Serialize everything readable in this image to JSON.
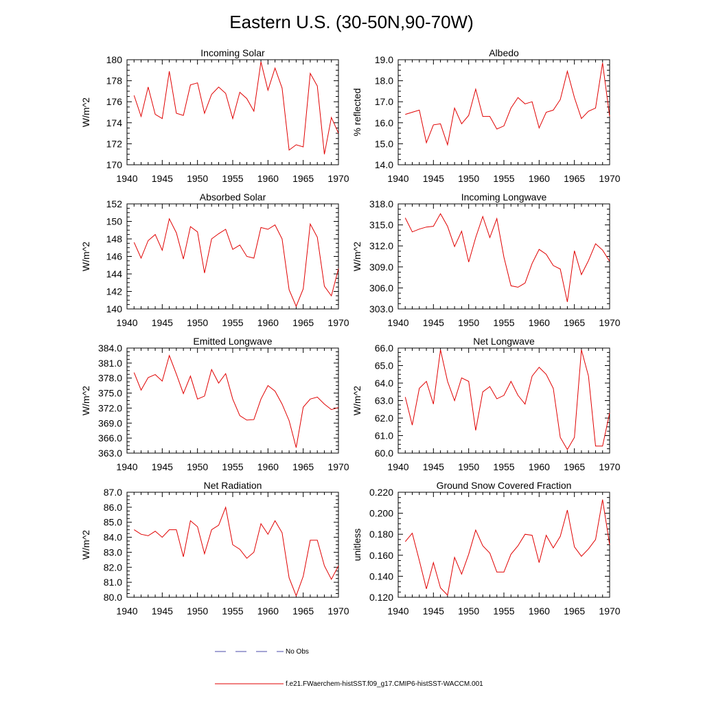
{
  "figure": {
    "title": "Eastern U.S. (30-50N,90-70W)",
    "legend": [
      {
        "label": "No Obs",
        "color": "#4a4aa8",
        "dash": "dashed"
      },
      {
        "label": "f.e21.FWaerchem-histSST.f09_g17.CMIP6-histSST-WACCM.001",
        "color": "#e00000",
        "dash": "solid"
      }
    ]
  },
  "chart_data": [
    {
      "type": "line",
      "title": "Incoming Solar",
      "ylabel": "W/m^2",
      "xlim": [
        1940,
        1970
      ],
      "ylim": [
        170,
        180
      ],
      "xticks": [
        "1940",
        "1945",
        "1950",
        "1955",
        "1960",
        "1965",
        "1970"
      ],
      "yticks": [
        "170",
        "172",
        "174",
        "176",
        "178",
        "180"
      ],
      "ytick_values": [
        170,
        172,
        174,
        176,
        178,
        180
      ],
      "series": [
        {
          "color": "#e00000",
          "x": [
            1941,
            1942,
            1943,
            1944,
            1945,
            1946,
            1947,
            1948,
            1949,
            1950,
            1951,
            1952,
            1953,
            1954,
            1955,
            1956,
            1957,
            1958,
            1959,
            1960,
            1961,
            1962,
            1963,
            1964,
            1965,
            1966,
            1967,
            1968,
            1969,
            1970
          ],
          "values": [
            176.6,
            174.6,
            177.4,
            174.8,
            174.4,
            178.9,
            174.9,
            174.7,
            177.6,
            177.8,
            174.9,
            176.7,
            177.4,
            176.8,
            174.4,
            176.9,
            176.3,
            175.1,
            179.8,
            177.1,
            179.2,
            177.3,
            171.4,
            171.9,
            171.7,
            178.7,
            177.5,
            171.0,
            174.5,
            173.0
          ]
        }
      ]
    },
    {
      "type": "line",
      "title": "Albedo",
      "ylabel": "% reflected",
      "xlim": [
        1940,
        1970
      ],
      "ylim": [
        14.0,
        19.0
      ],
      "xticks": [
        "1940",
        "1945",
        "1950",
        "1955",
        "1960",
        "1965",
        "1970"
      ],
      "yticks": [
        "14.0",
        "15.0",
        "16.0",
        "17.0",
        "18.0",
        "19.0"
      ],
      "ytick_values": [
        14,
        15,
        16,
        17,
        18,
        19
      ],
      "series": [
        {
          "color": "#e00000",
          "x": [
            1941,
            1942,
            1943,
            1944,
            1945,
            1946,
            1947,
            1948,
            1949,
            1950,
            1951,
            1952,
            1953,
            1954,
            1955,
            1956,
            1957,
            1958,
            1959,
            1960,
            1961,
            1962,
            1963,
            1964,
            1965,
            1966,
            1967,
            1968,
            1969,
            1970
          ],
          "values": [
            16.4,
            16.5,
            16.6,
            15.05,
            15.9,
            15.95,
            14.95,
            16.7,
            15.95,
            16.35,
            17.6,
            16.3,
            16.3,
            15.7,
            15.85,
            16.7,
            17.2,
            16.9,
            17.0,
            15.75,
            16.5,
            16.6,
            17.1,
            18.45,
            17.2,
            16.2,
            16.55,
            16.7,
            18.85,
            16.3
          ]
        }
      ]
    },
    {
      "type": "line",
      "title": "Absorbed Solar",
      "ylabel": "W/m^2",
      "xlim": [
        1940,
        1970
      ],
      "ylim": [
        140,
        152
      ],
      "xticks": [
        "1940",
        "1945",
        "1950",
        "1955",
        "1960",
        "1965",
        "1970"
      ],
      "yticks": [
        "140",
        "142",
        "144",
        "146",
        "148",
        "150",
        "152"
      ],
      "ytick_values": [
        140,
        142,
        144,
        146,
        148,
        150,
        152
      ],
      "series": [
        {
          "color": "#e00000",
          "x": [
            1941,
            1942,
            1943,
            1944,
            1945,
            1946,
            1947,
            1948,
            1949,
            1950,
            1951,
            1952,
            1953,
            1954,
            1955,
            1956,
            1957,
            1958,
            1959,
            1960,
            1961,
            1962,
            1963,
            1964,
            1965,
            1966,
            1967,
            1968,
            1969,
            1970
          ],
          "values": [
            147.6,
            145.8,
            147.8,
            148.5,
            146.7,
            150.3,
            148.7,
            145.7,
            149.4,
            148.8,
            144.1,
            148.0,
            148.6,
            149.1,
            146.8,
            147.3,
            146.0,
            145.8,
            149.3,
            149.1,
            149.6,
            148.0,
            142.2,
            140.3,
            142.3,
            149.7,
            148.2,
            142.6,
            141.5,
            144.6
          ]
        }
      ]
    },
    {
      "type": "line",
      "title": "Incoming Longwave",
      "ylabel": "W/m^2",
      "xlim": [
        1940,
        1970
      ],
      "ylim": [
        303.0,
        318.0
      ],
      "xticks": [
        "1940",
        "1945",
        "1950",
        "1955",
        "1960",
        "1965",
        "1970"
      ],
      "yticks": [
        "303.0",
        "306.0",
        "309.0",
        "312.0",
        "315.0",
        "318.0"
      ],
      "ytick_values": [
        303,
        306,
        309,
        312,
        315,
        318
      ],
      "series": [
        {
          "color": "#e00000",
          "x": [
            1941,
            1942,
            1943,
            1944,
            1945,
            1946,
            1947,
            1948,
            1949,
            1950,
            1951,
            1952,
            1953,
            1954,
            1955,
            1956,
            1957,
            1958,
            1959,
            1960,
            1961,
            1962,
            1963,
            1964,
            1965,
            1966,
            1967,
            1968,
            1969,
            1970
          ],
          "values": [
            316.0,
            314.0,
            314.4,
            314.7,
            314.8,
            316.6,
            314.8,
            311.9,
            314.1,
            309.7,
            313.2,
            316.2,
            313.2,
            315.9,
            310.4,
            306.3,
            306.1,
            306.7,
            309.5,
            311.5,
            310.8,
            309.2,
            308.7,
            304.0,
            311.3,
            307.9,
            309.9,
            312.3,
            311.4,
            309.8
          ]
        }
      ]
    },
    {
      "type": "line",
      "title": "Emitted Longwave",
      "ylabel": "W/m^2",
      "xlim": [
        1940,
        1970
      ],
      "ylim": [
        363.0,
        384.0
      ],
      "xticks": [
        "1940",
        "1945",
        "1950",
        "1955",
        "1960",
        "1965",
        "1970"
      ],
      "yticks": [
        "363.0",
        "366.0",
        "369.0",
        "372.0",
        "375.0",
        "378.0",
        "381.0",
        "384.0"
      ],
      "ytick_values": [
        363,
        366,
        369,
        372,
        375,
        378,
        381,
        384
      ],
      "series": [
        {
          "color": "#e00000",
          "x": [
            1941,
            1942,
            1943,
            1944,
            1945,
            1946,
            1947,
            1948,
            1949,
            1950,
            1951,
            1952,
            1953,
            1954,
            1955,
            1956,
            1957,
            1958,
            1959,
            1960,
            1961,
            1962,
            1963,
            1964,
            1965,
            1966,
            1967,
            1968,
            1969,
            1970
          ],
          "values": [
            379.1,
            375.6,
            378.1,
            378.7,
            377.4,
            382.5,
            378.8,
            374.9,
            378.4,
            373.8,
            374.4,
            379.7,
            377.0,
            378.9,
            373.8,
            370.5,
            369.6,
            369.7,
            373.8,
            376.5,
            375.4,
            372.8,
            369.5,
            364.1,
            372.2,
            373.8,
            374.2,
            372.8,
            371.7,
            372.1
          ]
        }
      ]
    },
    {
      "type": "line",
      "title": "Net Longwave",
      "ylabel": "W/m^2",
      "xlim": [
        1940,
        1970
      ],
      "ylim": [
        60.0,
        66.0
      ],
      "xticks": [
        "1940",
        "1945",
        "1950",
        "1955",
        "1960",
        "1965",
        "1970"
      ],
      "yticks": [
        "60.0",
        "61.0",
        "62.0",
        "63.0",
        "64.0",
        "65.0",
        "66.0"
      ],
      "ytick_values": [
        60,
        61,
        62,
        63,
        64,
        65,
        66
      ],
      "series": [
        {
          "color": "#e00000",
          "x": [
            1941,
            1942,
            1943,
            1944,
            1945,
            1946,
            1947,
            1948,
            1949,
            1950,
            1951,
            1952,
            1953,
            1954,
            1955,
            1956,
            1957,
            1958,
            1959,
            1960,
            1961,
            1962,
            1963,
            1964,
            1965,
            1966,
            1967,
            1968,
            1969,
            1970
          ],
          "values": [
            63.2,
            61.6,
            63.7,
            64.1,
            62.8,
            65.9,
            64.1,
            63.0,
            64.3,
            64.1,
            61.3,
            63.5,
            63.8,
            63.1,
            63.3,
            64.1,
            63.3,
            62.8,
            64.4,
            64.9,
            64.5,
            63.7,
            60.9,
            60.2,
            60.9,
            65.9,
            64.4,
            60.4,
            60.4,
            62.3
          ]
        }
      ]
    },
    {
      "type": "line",
      "title": "Net Radiation",
      "ylabel": "W/m^2",
      "xlim": [
        1940,
        1970
      ],
      "ylim": [
        80.0,
        87.0
      ],
      "xticks": [
        "1940",
        "1945",
        "1950",
        "1955",
        "1960",
        "1965",
        "1970"
      ],
      "yticks": [
        "80.0",
        "81.0",
        "82.0",
        "83.0",
        "84.0",
        "85.0",
        "86.0",
        "87.0"
      ],
      "ytick_values": [
        80,
        81,
        82,
        83,
        84,
        85,
        86,
        87
      ],
      "series": [
        {
          "color": "#e00000",
          "x": [
            1941,
            1942,
            1943,
            1944,
            1945,
            1946,
            1947,
            1948,
            1949,
            1950,
            1951,
            1952,
            1953,
            1954,
            1955,
            1956,
            1957,
            1958,
            1959,
            1960,
            1961,
            1962,
            1963,
            1964,
            1965,
            1966,
            1967,
            1968,
            1969,
            1970
          ],
          "values": [
            84.5,
            84.2,
            84.1,
            84.4,
            84.0,
            84.5,
            84.5,
            82.7,
            85.1,
            84.7,
            82.9,
            84.5,
            84.8,
            86.0,
            83.5,
            83.2,
            82.6,
            83.0,
            84.9,
            84.2,
            85.1,
            84.3,
            81.3,
            80.1,
            81.4,
            83.8,
            83.8,
            82.1,
            81.2,
            82.1
          ]
        }
      ]
    },
    {
      "type": "line",
      "title": "Ground Snow Covered Fraction",
      "ylabel": "unitless",
      "xlim": [
        1940,
        1970
      ],
      "ylim": [
        0.12,
        0.22
      ],
      "xticks": [
        "1940",
        "1945",
        "1950",
        "1955",
        "1960",
        "1965",
        "1970"
      ],
      "yticks": [
        "0.120",
        "0.140",
        "0.160",
        "0.180",
        "0.200",
        "0.220"
      ],
      "ytick_values": [
        0.12,
        0.14,
        0.16,
        0.18,
        0.2,
        0.22
      ],
      "series": [
        {
          "color": "#e00000",
          "x": [
            1941,
            1942,
            1943,
            1944,
            1945,
            1946,
            1947,
            1948,
            1949,
            1950,
            1951,
            1952,
            1953,
            1954,
            1955,
            1956,
            1957,
            1958,
            1959,
            1960,
            1961,
            1962,
            1963,
            1964,
            1965,
            1966,
            1967,
            1968,
            1969,
            1970
          ],
          "values": [
            0.173,
            0.181,
            0.155,
            0.128,
            0.153,
            0.129,
            0.122,
            0.158,
            0.142,
            0.161,
            0.184,
            0.169,
            0.162,
            0.144,
            0.144,
            0.161,
            0.169,
            0.18,
            0.179,
            0.153,
            0.179,
            0.167,
            0.178,
            0.203,
            0.168,
            0.159,
            0.166,
            0.175,
            0.213,
            0.17
          ]
        }
      ]
    }
  ]
}
